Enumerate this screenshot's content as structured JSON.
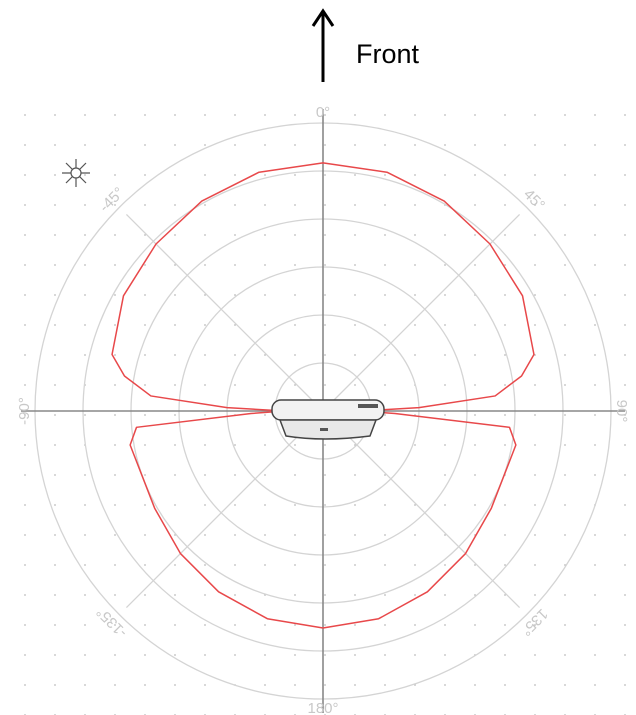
{
  "chart_data": {
    "type": "polar",
    "label": "Front",
    "angles": [
      -180,
      -165,
      -150,
      -135,
      -120,
      -100,
      -95,
      -92,
      -90,
      -88,
      -85,
      -80,
      -75,
      -60,
      -45,
      -30,
      -15,
      0,
      15,
      30,
      45,
      60,
      75,
      80,
      85,
      88,
      90,
      92,
      95,
      100,
      120,
      135,
      150,
      165,
      180
    ],
    "values": [
      4.52,
      4.48,
      4.35,
      4.2,
      4.05,
      4.08,
      3.9,
      1.5,
      0.8,
      2.0,
      3.6,
      4.2,
      4.55,
      4.8,
      4.92,
      5.05,
      5.15,
      5.17,
      5.15,
      5.05,
      4.92,
      4.8,
      4.55,
      4.2,
      3.6,
      2.0,
      0.8,
      1.5,
      3.9,
      4.08,
      4.05,
      4.2,
      4.35,
      4.48,
      4.52
    ],
    "color": "#e8484a",
    "rlim": [
      0,
      6
    ],
    "rticks": [
      1,
      2,
      3,
      4,
      5,
      6
    ],
    "angle_ticks": [
      {
        "value": 0,
        "label": "0°"
      },
      {
        "value": 45,
        "label": "45°"
      },
      {
        "value": 90,
        "label": "90°"
      },
      {
        "value": 135,
        "label": "135°"
      },
      {
        "value": 180,
        "label": "180°"
      },
      {
        "value": -135,
        "label": "-135°"
      },
      {
        "value": -90,
        "label": "-90°"
      },
      {
        "value": -45,
        "label": "-45°"
      }
    ]
  }
}
